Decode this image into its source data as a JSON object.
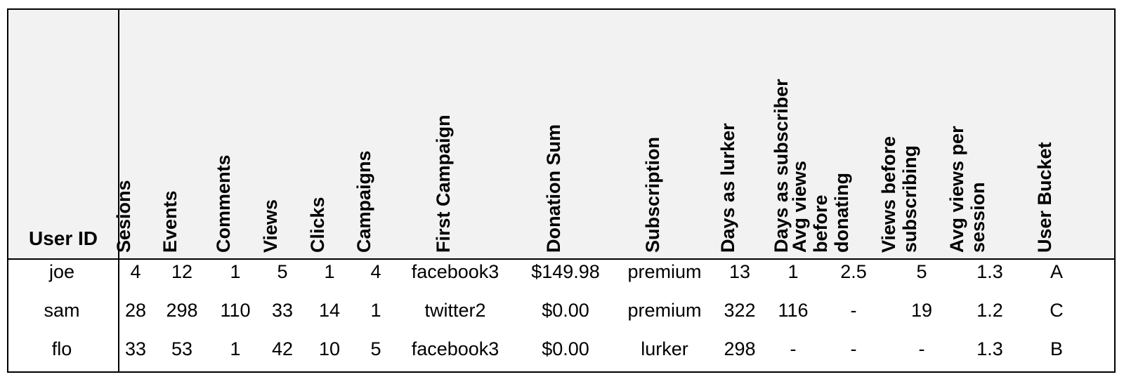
{
  "table": {
    "user_id_header": "User ID",
    "columns": [
      "Sesions",
      "Events",
      "Comments",
      "Views",
      "Clicks",
      "Campaigns",
      "First Campaign",
      "Donation Sum",
      "Subscription",
      "Days as lurker",
      "Days as subscriber",
      "Avg views before donating",
      "Views before subscribing",
      "Avg views per session",
      "User Bucket"
    ],
    "rows": [
      {
        "user_id": "joe",
        "cells": [
          "4",
          "12",
          "1",
          "5",
          "1",
          "4",
          "facebook3",
          "$149.98",
          "premium",
          "13",
          "1",
          "2.5",
          "5",
          "1.3",
          "A"
        ]
      },
      {
        "user_id": "sam",
        "cells": [
          "28",
          "298",
          "110",
          "33",
          "14",
          "1",
          "twitter2",
          "$0.00",
          "premium",
          "322",
          "116",
          "-",
          "19",
          "1.2",
          "C"
        ]
      },
      {
        "user_id": "flo",
        "cells": [
          "33",
          "53",
          "1",
          "42",
          "10",
          "5",
          "facebook3",
          "$0.00",
          "lurker",
          "298",
          "-",
          "-",
          "-",
          "1.3",
          "B"
        ]
      }
    ]
  }
}
